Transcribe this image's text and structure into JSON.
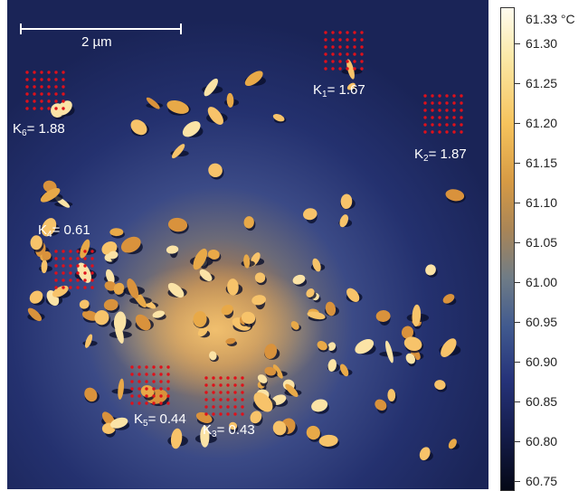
{
  "image": {
    "scale_bar_label": "2 µm",
    "markers": [
      {
        "id": "K1",
        "base": "K",
        "sub": "1",
        "value": "= 1.67"
      },
      {
        "id": "K2",
        "base": "K",
        "sub": "2",
        "value": "= 1.87"
      },
      {
        "id": "K3",
        "base": "K",
        "sub": "3",
        "value": "= 0.43"
      },
      {
        "id": "K4",
        "base": "K",
        "sub": "4",
        "value": "= 0.61"
      },
      {
        "id": "K5",
        "base": "K",
        "sub": "5",
        "value": "= 0.44"
      },
      {
        "id": "K6",
        "base": "K",
        "sub": "6",
        "value": "= 1.88"
      }
    ],
    "grid_dot_color": "#e0101a"
  },
  "colorbar": {
    "unit": "°C",
    "top_label": "61.33 °C",
    "ticks": [
      "61.30",
      "61.25",
      "61.20",
      "61.15",
      "61.10",
      "61.05",
      "61.00",
      "60.95",
      "60.90",
      "60.85",
      "60.80",
      "60.75"
    ]
  }
}
